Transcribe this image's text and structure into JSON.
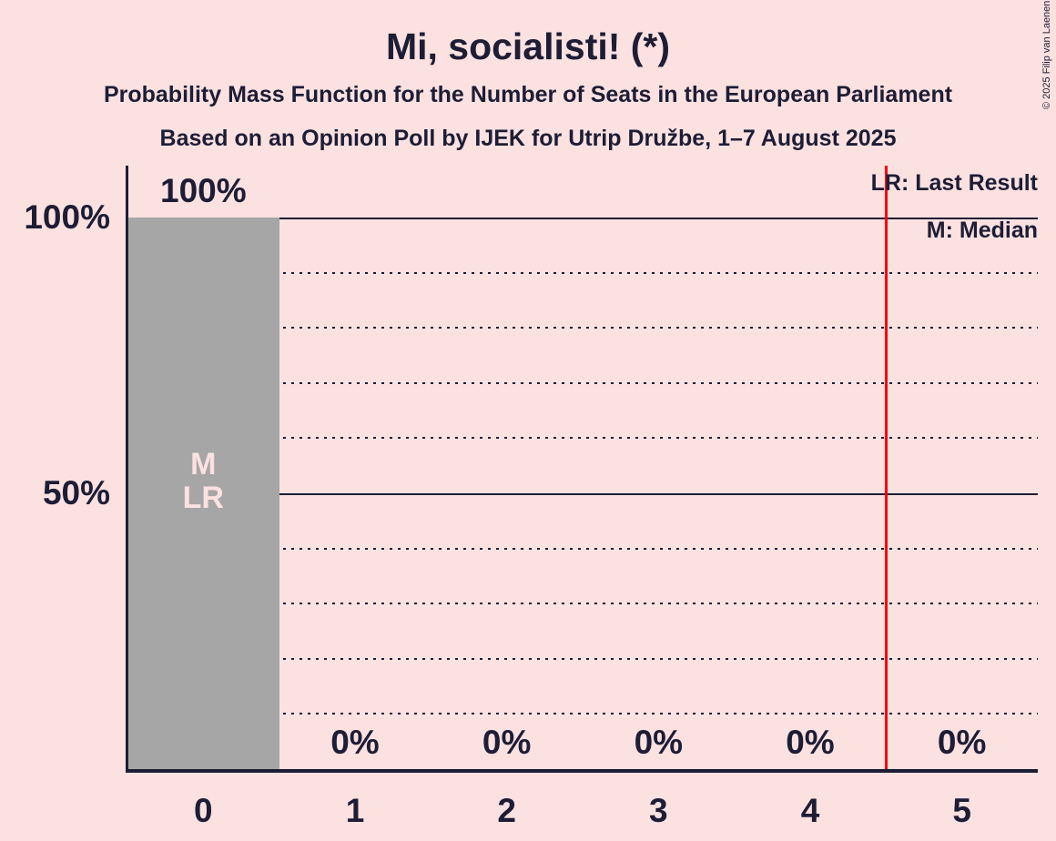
{
  "title": "Mi, socialisti! (*)",
  "subtitle1": "Probability Mass Function for the Number of Seats in the European Parliament",
  "subtitle2": "Based on an Opinion Poll by IJEK for Utrip Družbe, 1–7 August 2025",
  "copyright": "© 2025 Filip van Laenen",
  "legend": {
    "lr": "LR: Last Result",
    "m": "M: Median"
  },
  "colors": {
    "background": "#fce1e1",
    "bar": "#a6a6a6",
    "text": "#1d1d35",
    "red_line": "#ff0000",
    "bar_annotation_text": "#fce1e1"
  },
  "chart_data": {
    "type": "bar",
    "title": "Mi, socialisti! (*)",
    "categories": [
      "0",
      "1",
      "2",
      "3",
      "4",
      "5"
    ],
    "values": [
      100,
      0,
      0,
      0,
      0,
      0
    ],
    "bar_labels": [
      "100%",
      "0%",
      "0%",
      "0%",
      "0%",
      "0%"
    ],
    "ylim": [
      0,
      100
    ],
    "y_ticks": [
      {
        "value": 100,
        "label": "100%"
      },
      {
        "value": 50,
        "label": "50%"
      }
    ],
    "solid_gridlines": [
      100,
      50
    ],
    "dotted_gridlines": [
      90,
      80,
      70,
      60,
      40,
      30,
      20,
      10
    ],
    "grid": "horizontal-only",
    "legend_position": "top-right",
    "red_line_position": 4.5,
    "median_bar": {
      "category": "0",
      "annotation_lines": [
        "M",
        "LR"
      ]
    }
  }
}
